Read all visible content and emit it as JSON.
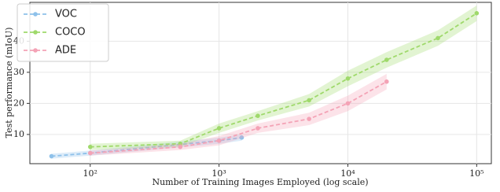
{
  "chart_data": {
    "type": "line",
    "x_label": "Number of Training Images Employed (log scale)",
    "y_label": "Test performance (mIoU)",
    "xlog": true,
    "grid": true,
    "legend": "upper left",
    "xlim": [
      34,
      130000
    ],
    "ylim": [
      0.6,
      52.5
    ],
    "xticks": [
      {
        "value": 100,
        "label": "10²"
      },
      {
        "value": 1000,
        "label": "10³"
      },
      {
        "value": 10000,
        "label": "10⁴"
      },
      {
        "value": 100000,
        "label": "10⁵"
      }
    ],
    "yticks": [
      10,
      20,
      30,
      40
    ],
    "series": [
      {
        "name": "VOC",
        "color": "#8ec1ea",
        "x": [
          50,
          100,
          1000,
          1500
        ],
        "values": [
          3,
          4,
          8,
          9
        ],
        "errors": [
          0.8,
          0.8,
          1,
          1
        ]
      },
      {
        "name": "COCO",
        "color": "#9fd96b",
        "x": [
          100,
          500,
          1000,
          2000,
          5000,
          10000,
          20000,
          50000,
          100000
        ],
        "values": [
          6,
          7,
          12,
          16,
          21,
          28,
          34,
          41,
          49
        ],
        "errors": [
          1,
          1,
          1.5,
          1.5,
          2,
          2.5,
          2.5,
          2.5,
          2.5
        ]
      },
      {
        "name": "ADE",
        "color": "#f4a3b6",
        "x": [
          100,
          500,
          1000,
          2000,
          5000,
          10000,
          20000
        ],
        "values": [
          4,
          6,
          8,
          12,
          15,
          20,
          27
        ],
        "errors": [
          0.8,
          1,
          1.5,
          1.5,
          2,
          2.5,
          2.5
        ]
      }
    ]
  }
}
